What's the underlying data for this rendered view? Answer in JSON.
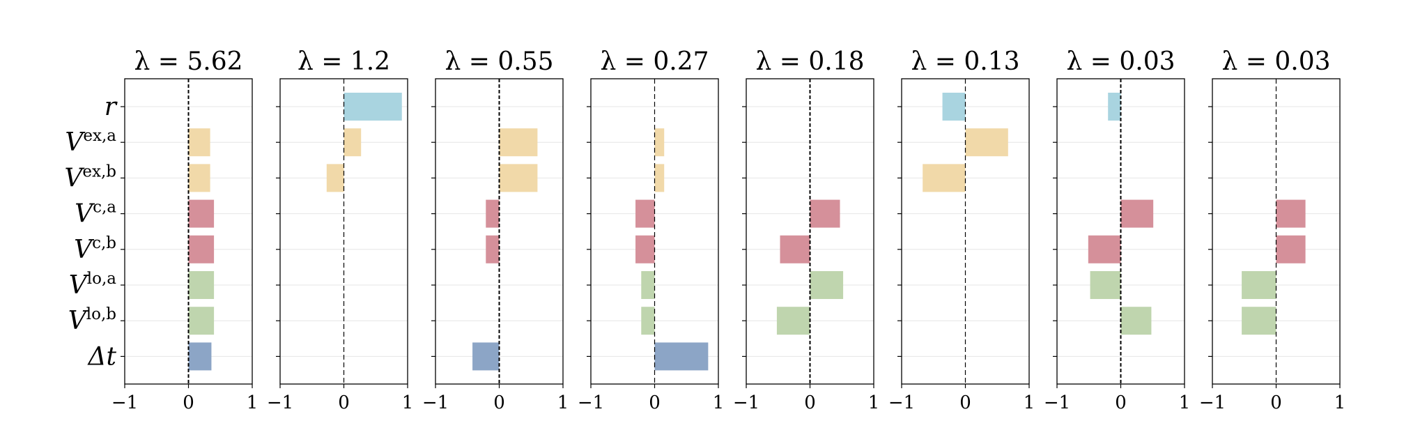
{
  "chart_data": {
    "type": "bar",
    "orientation": "horizontal",
    "grid": true,
    "xlim": [
      -1,
      1
    ],
    "xticks": [
      {
        "value": -1,
        "label": "−1"
      },
      {
        "value": 0,
        "label": "0"
      },
      {
        "value": 1,
        "label": "1"
      }
    ],
    "categories": [
      {
        "base": "r",
        "sup": ""
      },
      {
        "base": "V",
        "sup": "ex,a"
      },
      {
        "base": "V",
        "sup": "ex,b"
      },
      {
        "base": "V",
        "sup": "c,a"
      },
      {
        "base": "V",
        "sup": "c,b"
      },
      {
        "base": "V",
        "sup": "lo,a"
      },
      {
        "base": "V",
        "sup": "lo,b"
      },
      {
        "base": "Δ",
        "sup": "",
        "italic_suffix": "t"
      }
    ],
    "category_colors": [
      "#a9d4e0",
      "#f1d9a9",
      "#f1d9a9",
      "#d5909a",
      "#d5909a",
      "#bfd5ae",
      "#bfd5ae",
      "#8ca5c6"
    ],
    "panels": [
      {
        "title": "λ = 5.62",
        "zero_line": "dense",
        "values": [
          0,
          0.34,
          0.34,
          0.4,
          0.4,
          0.4,
          0.4,
          0.36
        ]
      },
      {
        "title": "λ = 1.2",
        "zero_line": "sparse",
        "values": [
          0.91,
          0.27,
          -0.27,
          0,
          0,
          0,
          0,
          0
        ]
      },
      {
        "title": "λ = 0.55",
        "zero_line": "dense",
        "values": [
          0,
          0.6,
          0.6,
          -0.21,
          -0.21,
          0,
          0,
          -0.42
        ]
      },
      {
        "title": "λ = 0.27",
        "zero_line": "sparse",
        "values": [
          0,
          0.15,
          0.15,
          -0.3,
          -0.3,
          -0.21,
          -0.21,
          0.84
        ]
      },
      {
        "title": "λ = 0.18",
        "zero_line": "dense",
        "values": [
          0,
          0,
          0,
          0.47,
          -0.47,
          0.52,
          -0.52,
          0
        ]
      },
      {
        "title": "λ = 0.13",
        "zero_line": "sparse",
        "values": [
          -0.36,
          0.67,
          -0.67,
          0,
          0,
          0,
          0,
          0
        ]
      },
      {
        "title": "λ = 0.03",
        "zero_line": "dense",
        "values": [
          -0.2,
          0,
          0,
          0.51,
          -0.51,
          -0.48,
          0.48,
          0
        ]
      },
      {
        "title": "λ = 0.03",
        "zero_line": "sparse",
        "values": [
          0,
          0,
          0,
          0.46,
          0.46,
          -0.54,
          -0.54,
          0
        ]
      }
    ]
  }
}
